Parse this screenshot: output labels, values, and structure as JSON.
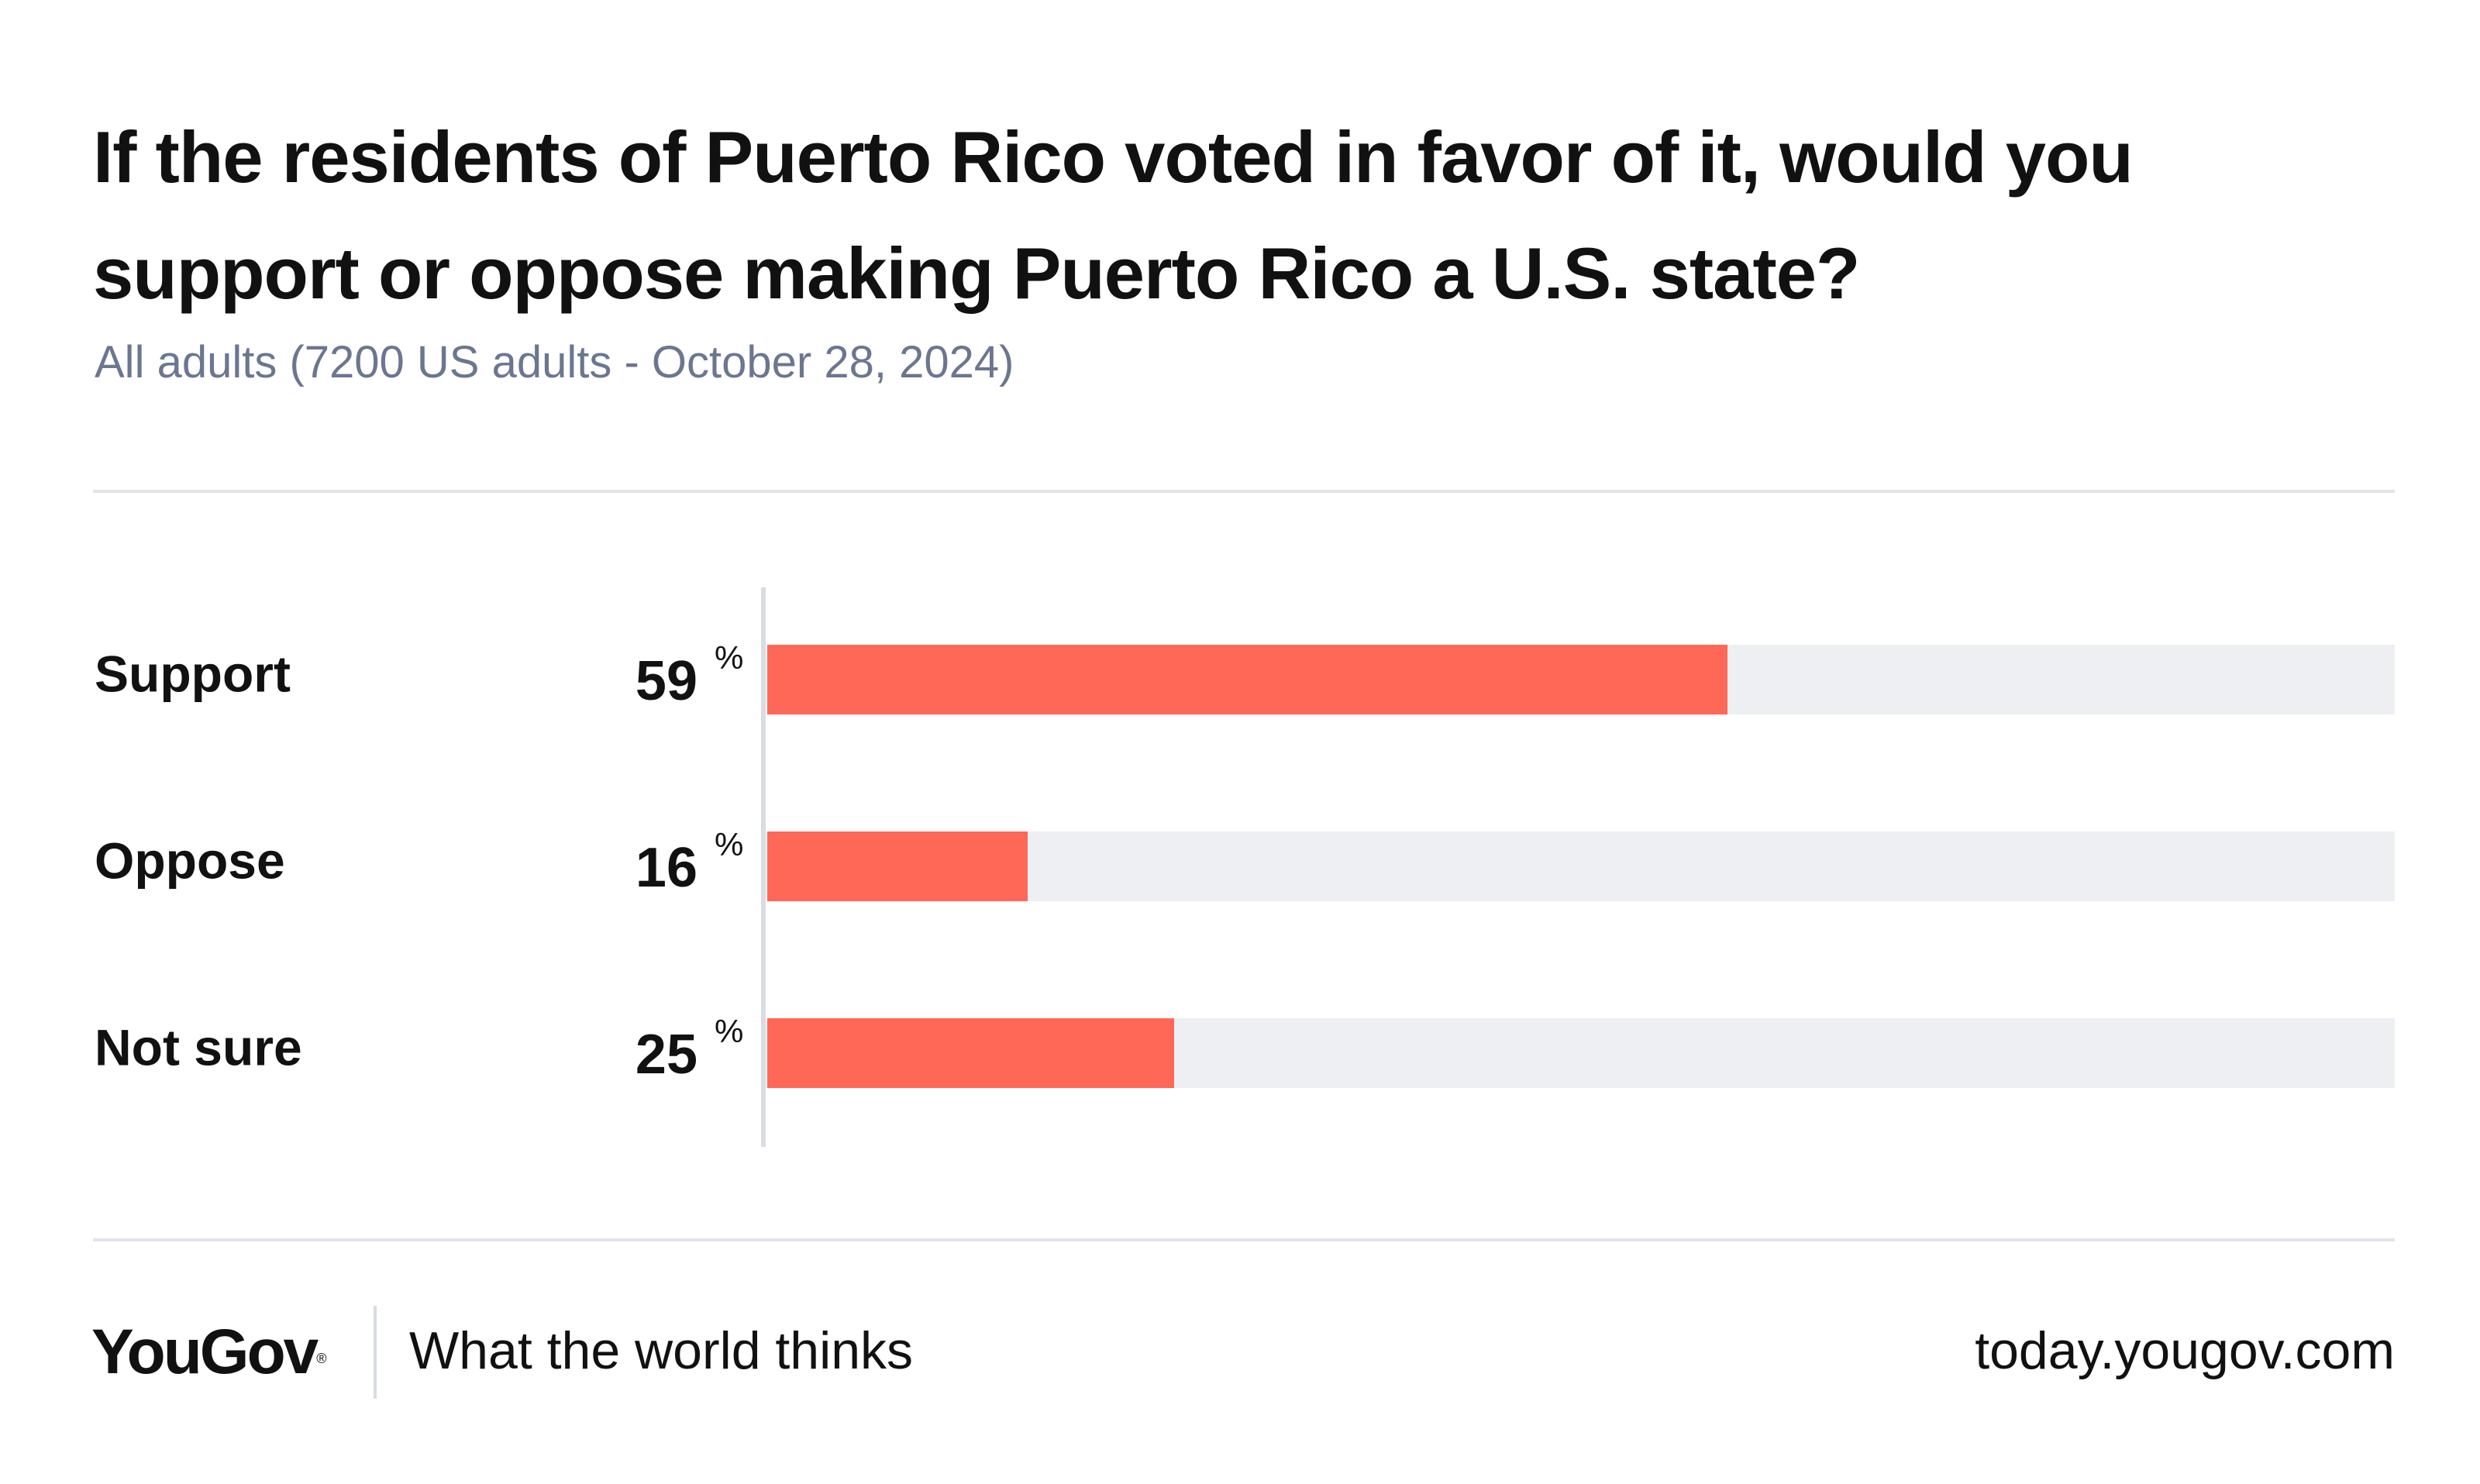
{
  "title": "If the residents of Puerto Rico voted in favor of it, would you support or oppose making Puerto Rico a U.S. state?",
  "subtitle": "All adults (7200 US adults - October 28, 2024)",
  "colors": {
    "bar": "#ff6757",
    "track": "#eeeff2",
    "axis": "#d9dce2",
    "subtitle": "#6b7691"
  },
  "chart_data": {
    "type": "bar",
    "orientation": "horizontal",
    "categories": [
      "Support",
      "Oppose",
      "Not sure"
    ],
    "values": [
      59,
      16,
      25
    ],
    "unit": "%",
    "xlim": [
      0,
      100
    ],
    "grid": false
  },
  "footer": {
    "logo": "YouGov",
    "logo_mark": "®",
    "tagline": "What the world thinks",
    "url": "today.yougov.com"
  }
}
